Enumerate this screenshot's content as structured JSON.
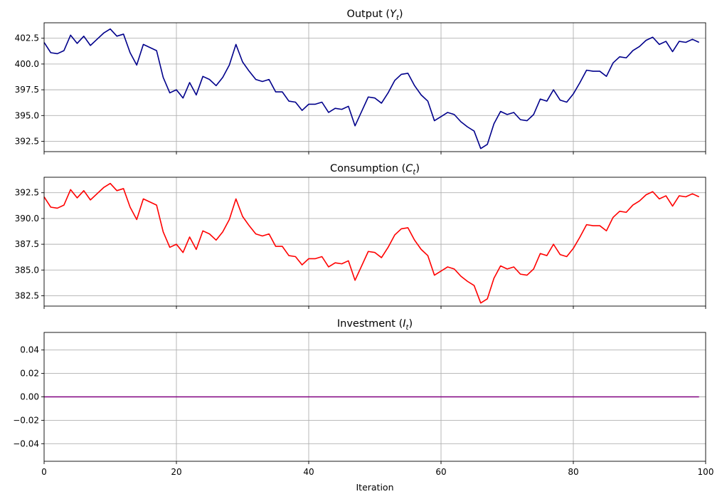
{
  "chart_data": [
    {
      "type": "line",
      "title_prefix": "Output (",
      "title_var": "Y",
      "title_sub": "t",
      "title_suffix": ")",
      "xlim": [
        0,
        100
      ],
      "ylim": [
        391.5,
        404.0
      ],
      "yticks": [
        392.5,
        395.0,
        397.5,
        400.0,
        402.5
      ],
      "ytick_labels": [
        "392.5",
        "395.0",
        "397.5",
        "400.0",
        "402.5"
      ],
      "xticks": [
        0,
        20,
        40,
        60,
        80,
        100
      ],
      "xtick_labels": [],
      "grid": true,
      "color": "#00008b",
      "x": [
        0,
        1,
        2,
        3,
        4,
        5,
        6,
        7,
        8,
        9,
        10,
        11,
        12,
        13,
        14,
        15,
        16,
        17,
        18,
        19,
        20,
        21,
        22,
        23,
        24,
        25,
        26,
        27,
        28,
        29,
        30,
        31,
        32,
        33,
        34,
        35,
        36,
        37,
        38,
        39,
        40,
        41,
        42,
        43,
        44,
        45,
        46,
        47,
        48,
        49,
        50,
        51,
        52,
        53,
        54,
        55,
        56,
        57,
        58,
        59,
        60,
        61,
        62,
        63,
        64,
        65,
        66,
        67,
        68,
        69,
        70,
        71,
        72,
        73,
        74,
        75,
        76,
        77,
        78,
        79,
        80,
        81,
        82,
        83,
        84,
        85,
        86,
        87,
        88,
        89,
        90,
        91,
        92,
        93,
        94,
        95,
        96,
        97,
        98,
        99
      ],
      "values": [
        402.1,
        401.1,
        401.0,
        401.3,
        402.8,
        402.0,
        402.7,
        401.8,
        402.4,
        403.0,
        403.4,
        402.7,
        402.9,
        401.1,
        399.9,
        401.9,
        401.6,
        401.3,
        398.7,
        397.2,
        397.5,
        396.7,
        398.2,
        397.0,
        398.8,
        398.5,
        397.9,
        398.7,
        399.9,
        401.9,
        400.2,
        399.3,
        398.5,
        398.3,
        398.5,
        397.3,
        397.3,
        396.4,
        396.3,
        395.5,
        396.1,
        396.1,
        396.3,
        395.3,
        395.7,
        395.6,
        395.9,
        394.0,
        395.4,
        396.8,
        396.7,
        396.2,
        397.2,
        398.4,
        399.0,
        399.1,
        397.9,
        397.0,
        396.4,
        394.5,
        394.9,
        395.3,
        395.1,
        394.4,
        393.9,
        393.5,
        391.8,
        392.2,
        394.2,
        395.4,
        395.1,
        395.3,
        394.6,
        394.5,
        395.1,
        396.6,
        396.4,
        397.5,
        396.5,
        396.3,
        397.1,
        398.2,
        399.4,
        399.3,
        399.3,
        398.8,
        400.1,
        400.7,
        400.6,
        401.3,
        401.7,
        402.3,
        402.6,
        401.9,
        402.2,
        401.2,
        402.2,
        402.1,
        402.4,
        402.1
      ]
    },
    {
      "type": "line",
      "title_prefix": "Consumption (",
      "title_var": "C",
      "title_sub": "t",
      "title_suffix": ")",
      "xlim": [
        0,
        100
      ],
      "ylim": [
        381.5,
        394.0
      ],
      "yticks": [
        382.5,
        385.0,
        387.5,
        390.0,
        392.5
      ],
      "ytick_labels": [
        "382.5",
        "385.0",
        "387.5",
        "390.0",
        "392.5"
      ],
      "xticks": [
        0,
        20,
        40,
        60,
        80,
        100
      ],
      "xtick_labels": [],
      "grid": true,
      "color": "#ff0000",
      "x": [
        0,
        1,
        2,
        3,
        4,
        5,
        6,
        7,
        8,
        9,
        10,
        11,
        12,
        13,
        14,
        15,
        16,
        17,
        18,
        19,
        20,
        21,
        22,
        23,
        24,
        25,
        26,
        27,
        28,
        29,
        30,
        31,
        32,
        33,
        34,
        35,
        36,
        37,
        38,
        39,
        40,
        41,
        42,
        43,
        44,
        45,
        46,
        47,
        48,
        49,
        50,
        51,
        52,
        53,
        54,
        55,
        56,
        57,
        58,
        59,
        60,
        61,
        62,
        63,
        64,
        65,
        66,
        67,
        68,
        69,
        70,
        71,
        72,
        73,
        74,
        75,
        76,
        77,
        78,
        79,
        80,
        81,
        82,
        83,
        84,
        85,
        86,
        87,
        88,
        89,
        90,
        91,
        92,
        93,
        94,
        95,
        96,
        97,
        98,
        99
      ],
      "values": [
        392.1,
        391.1,
        391.0,
        391.3,
        392.8,
        392.0,
        392.7,
        391.8,
        392.4,
        393.0,
        393.4,
        392.7,
        392.9,
        391.1,
        389.9,
        391.9,
        391.6,
        391.3,
        388.7,
        387.2,
        387.5,
        386.7,
        388.2,
        387.0,
        388.8,
        388.5,
        387.9,
        388.7,
        389.9,
        391.9,
        390.2,
        389.3,
        388.5,
        388.3,
        388.5,
        387.3,
        387.3,
        386.4,
        386.3,
        385.5,
        386.1,
        386.1,
        386.3,
        385.3,
        385.7,
        385.6,
        385.9,
        384.0,
        385.4,
        386.8,
        386.7,
        386.2,
        387.2,
        388.4,
        389.0,
        389.1,
        387.9,
        387.0,
        386.4,
        384.5,
        384.9,
        385.3,
        385.1,
        384.4,
        383.9,
        383.5,
        381.8,
        382.2,
        384.2,
        385.4,
        385.1,
        385.3,
        384.6,
        384.5,
        385.1,
        386.6,
        386.4,
        387.5,
        386.5,
        386.3,
        387.1,
        388.2,
        389.4,
        389.3,
        389.3,
        388.8,
        390.1,
        390.7,
        390.6,
        391.3,
        391.7,
        392.3,
        392.6,
        391.9,
        392.2,
        391.2,
        392.2,
        392.1,
        392.4,
        392.1
      ]
    },
    {
      "type": "line",
      "title_prefix": "Investment (",
      "title_var": "I",
      "title_sub": "t",
      "title_suffix": ")",
      "xlim": [
        0,
        100
      ],
      "ylim": [
        -0.055,
        0.055
      ],
      "yticks": [
        -0.04,
        -0.02,
        0.0,
        0.02,
        0.04
      ],
      "ytick_labels": [
        "−0.04",
        "−0.02",
        "0.00",
        "0.02",
        "0.04"
      ],
      "xticks": [
        0,
        20,
        40,
        60,
        80,
        100
      ],
      "xtick_labels": [
        "0",
        "20",
        "40",
        "60",
        "80",
        "100"
      ],
      "grid": true,
      "color": "#800080",
      "x": [
        0,
        99
      ],
      "values": [
        0.0,
        0.0
      ]
    }
  ],
  "xlabel": "Iteration"
}
